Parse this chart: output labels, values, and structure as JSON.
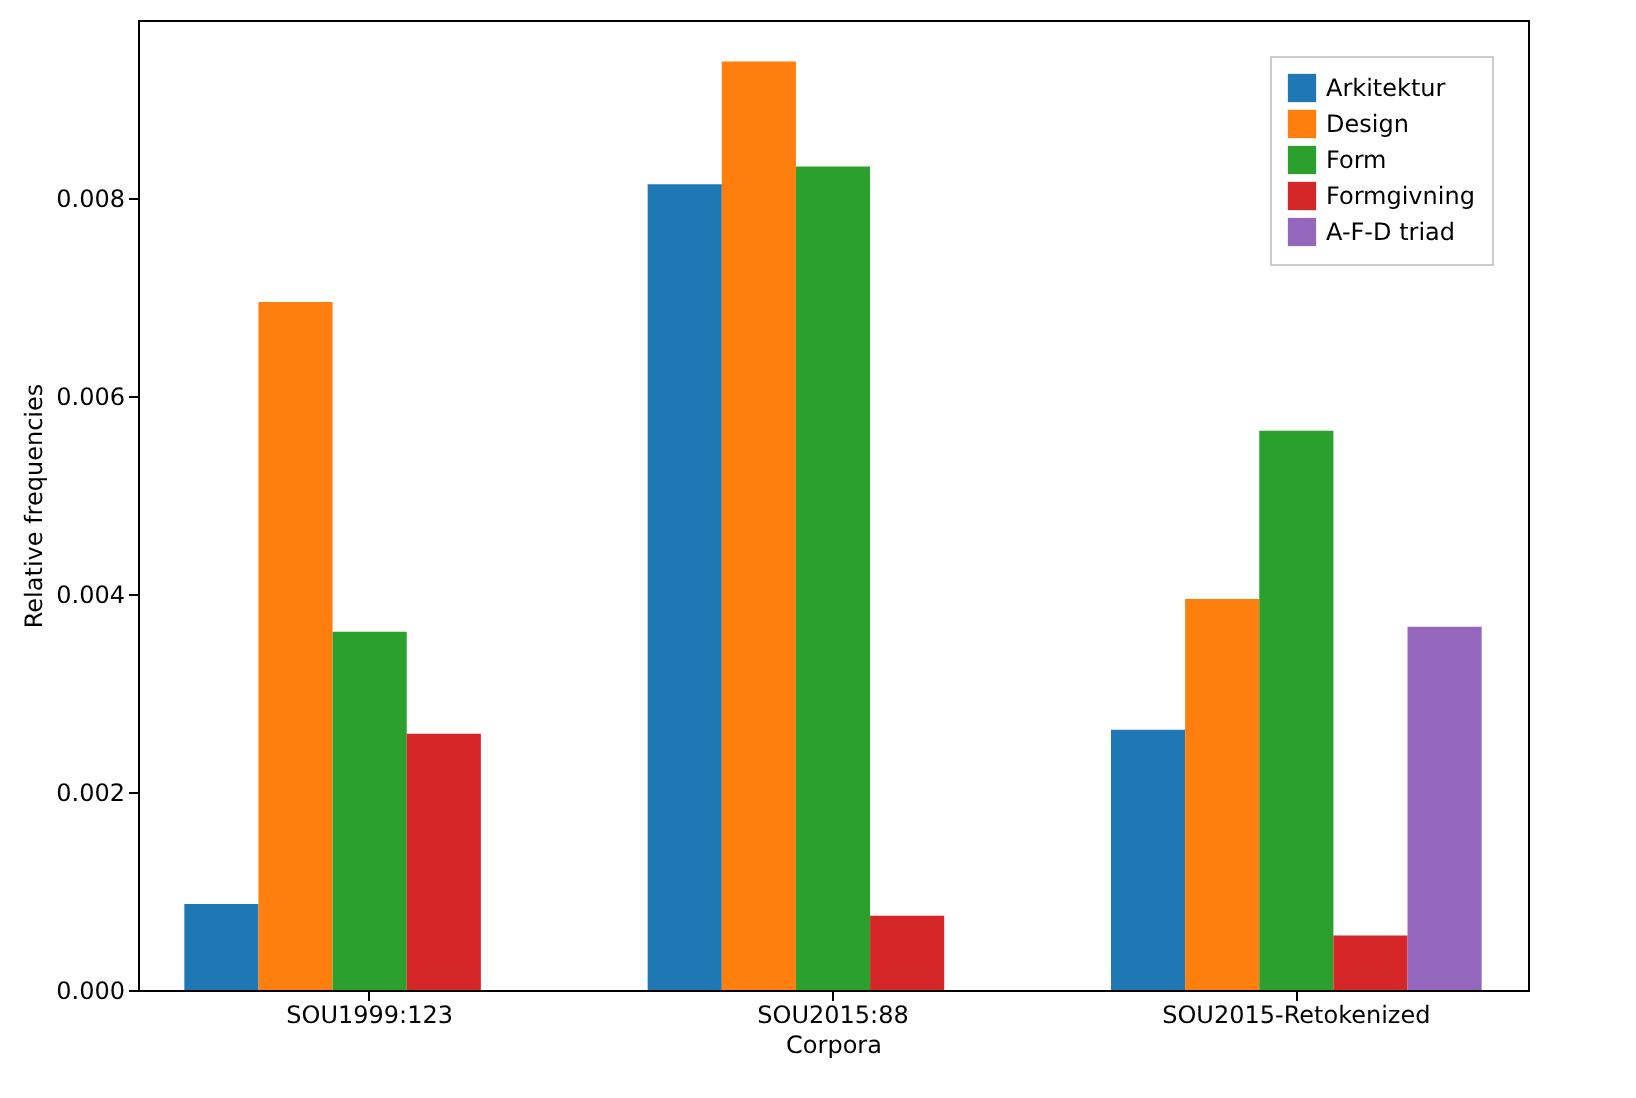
{
  "chart_data": {
    "type": "bar",
    "xlabel": "Corpora",
    "ylabel": "Relative frequencies",
    "categories": [
      "SOU1999:123",
      "SOU2015:88",
      "SOU2015-Retokenized"
    ],
    "series": [
      {
        "name": "Arkitektur",
        "color": "#1f77b4",
        "values": [
          0.00087,
          0.00814,
          0.00263
        ]
      },
      {
        "name": "Design",
        "color": "#ff7f0e",
        "values": [
          0.00695,
          0.00938,
          0.00395
        ]
      },
      {
        "name": "Form",
        "color": "#2ca02c",
        "values": [
          0.00362,
          0.00832,
          0.00565
        ]
      },
      {
        "name": "Formgivning",
        "color": "#d62728",
        "values": [
          0.00259,
          0.00075,
          0.00055
        ]
      },
      {
        "name": "A-F-D triad",
        "color": "#9467bd",
        "values": [
          null,
          null,
          0.00367
        ]
      }
    ],
    "ylim": [
      0,
      0.0098
    ],
    "yticks": [
      {
        "value": 0,
        "label": "0.000"
      },
      {
        "value": 0.002,
        "label": "0.002"
      },
      {
        "value": 0.004,
        "label": "0.004"
      },
      {
        "value": 0.006,
        "label": "0.006"
      },
      {
        "value": 0.008,
        "label": "0.008"
      }
    ],
    "legend": "top right"
  }
}
